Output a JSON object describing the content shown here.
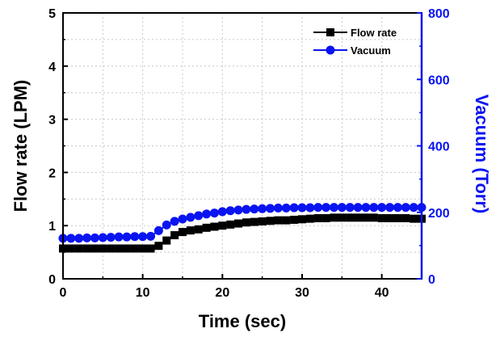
{
  "chart_data": {
    "type": "line",
    "title": "",
    "xlabel": "Time (sec)",
    "ylabel_left": "Flow rate (LPM)",
    "ylabel_right": "Vacuum (Torr)",
    "xlim": [
      0,
      45
    ],
    "ylim_left": [
      0,
      5
    ],
    "ylim_right": [
      0,
      800
    ],
    "x_ticks": [
      0,
      10,
      20,
      30,
      40
    ],
    "x_tick_labels": [
      "0",
      "10",
      "20",
      "30",
      "40"
    ],
    "y_left_ticks": [
      0,
      1,
      2,
      3,
      4,
      5
    ],
    "y_left_tick_labels": [
      "0",
      "1",
      "2",
      "3",
      "4",
      "5"
    ],
    "y_right_ticks": [
      0,
      200,
      400,
      600,
      800
    ],
    "y_right_tick_labels": [
      "0",
      "200",
      "400",
      "600",
      "800"
    ],
    "grid": true,
    "legend_position": "top-right",
    "colors": {
      "flow": "#000000",
      "vacuum": "#0a14f0",
      "right_axis": "#0a14f0"
    },
    "series": [
      {
        "name": "Flow rate",
        "axis": "left",
        "marker": "square",
        "x": [
          0,
          1,
          2,
          3,
          4,
          5,
          6,
          7,
          8,
          9,
          10,
          11,
          12,
          13,
          14,
          15,
          16,
          17,
          18,
          19,
          20,
          21,
          22,
          23,
          24,
          25,
          26,
          27,
          28,
          29,
          30,
          31,
          32,
          33,
          34,
          35,
          36,
          37,
          38,
          39,
          40,
          41,
          42,
          43,
          44,
          45
        ],
        "values": [
          0.57,
          0.57,
          0.57,
          0.57,
          0.57,
          0.57,
          0.57,
          0.57,
          0.57,
          0.57,
          0.57,
          0.57,
          0.62,
          0.72,
          0.82,
          0.88,
          0.91,
          0.93,
          0.96,
          0.98,
          1.0,
          1.02,
          1.04,
          1.06,
          1.07,
          1.08,
          1.09,
          1.1,
          1.1,
          1.11,
          1.12,
          1.13,
          1.14,
          1.14,
          1.15,
          1.15,
          1.15,
          1.15,
          1.15,
          1.15,
          1.14,
          1.14,
          1.14,
          1.14,
          1.13,
          1.13
        ]
      },
      {
        "name": "Vacuum",
        "axis": "right",
        "marker": "circle",
        "x": [
          0,
          1,
          2,
          3,
          4,
          5,
          6,
          7,
          8,
          9,
          10,
          11,
          12,
          13,
          14,
          15,
          16,
          17,
          18,
          19,
          20,
          21,
          22,
          23,
          24,
          25,
          26,
          27,
          28,
          29,
          30,
          31,
          32,
          33,
          34,
          35,
          36,
          37,
          38,
          39,
          40,
          41,
          42,
          43,
          44,
          45
        ],
        "values": [
          122,
          122,
          122,
          123,
          123,
          124,
          125,
          126,
          126,
          127,
          127,
          128,
          145,
          162,
          173,
          180,
          185,
          190,
          195,
          198,
          202,
          205,
          207,
          209,
          210,
          211,
          212,
          213,
          213,
          214,
          214,
          214,
          215,
          215,
          215,
          215,
          215,
          215,
          215,
          215,
          215,
          215,
          215,
          215,
          215,
          215
        ]
      }
    ]
  }
}
